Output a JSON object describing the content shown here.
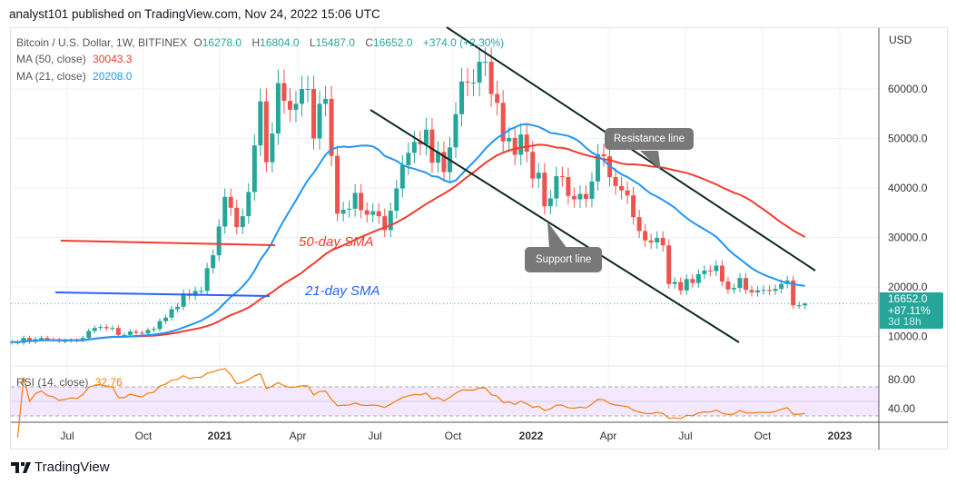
{
  "header": {
    "text": "analyst101 published on TradingView.com, Nov 24, 2022 15:06 UTC"
  },
  "legend": {
    "symbol": "Bitcoin / U.S. Dollar, 1W, BITFINEX",
    "o_label": "O",
    "o": "16278.0",
    "h_label": "H",
    "h": "16804.0",
    "l_label": "L",
    "l": "15487.0",
    "c_label": "C",
    "c": "16652.0",
    "change": "+374.0 (+2.30%)",
    "ma50_label": "MA (50, close)",
    "ma50_value": "30043.3",
    "ma21_label": "MA (21, close)",
    "ma21_value": "20208.0",
    "rsi_label": "RSI (14, close)",
    "rsi_value": "32.76"
  },
  "price_box": {
    "price": "16652.0",
    "change": "+87.11%",
    "countdown": "3d 18h"
  },
  "annotations": {
    "resistance": "Resistance line",
    "support": "Support line",
    "sma50": "50-day  SMA",
    "sma21": "21-day SMA"
  },
  "footer": {
    "brand": "TradingView"
  },
  "colors": {
    "up": "#26a69a",
    "down": "#ef5350",
    "ma50": "#f23b2f",
    "ma21": "#2196f3",
    "rsi": "#f57c00",
    "trend": "#0f2a1f",
    "rsi_band": "#f3e8fd"
  },
  "chart_data": {
    "type": "candlestick",
    "interval": "1W",
    "first_week": "2020-04-27",
    "closes": [
      8900,
      8700,
      9700,
      8900,
      9450,
      9700,
      9400,
      9300,
      9000,
      9100,
      9250,
      9200,
      9700,
      11100,
      11700,
      11900,
      11650,
      11700,
      10300,
      10300,
      11000,
      10750,
      10600,
      11300,
      11500,
      13100,
      13800,
      15500,
      16000,
      18700,
      18200,
      19200,
      19200,
      23800,
      26400,
      32200,
      38200,
      36000,
      32100,
      34300,
      39200,
      48600,
      57500,
      45200,
      51000,
      61200,
      57600,
      55800,
      57000,
      60000,
      60000,
      50000,
      57000,
      58000,
      46500,
      34800,
      35600,
      35800,
      39000,
      35500,
      34600,
      35300,
      34300,
      31500,
      35400,
      39900,
      44600,
      47100,
      49300,
      48800,
      51800,
      45100,
      47300,
      43200,
      48200,
      54900,
      61500,
      61300,
      61300,
      65500,
      65500,
      59000,
      57200,
      49400,
      50100,
      46700,
      50800,
      47300,
      41900,
      43100,
      36300,
      37900,
      42400,
      42200,
      38400,
      37700,
      38800,
      37800,
      41300,
      46800,
      46400,
      42200,
      40400,
      39500,
      38500,
      34100,
      31300,
      29400,
      29000,
      29900,
      28400,
      20600,
      21000,
      19300,
      21600,
      20800,
      22600,
      23300,
      23200,
      24300,
      21100,
      19500,
      19800,
      21800,
      19400,
      18900,
      19300,
      19400,
      19200,
      19600,
      20600,
      21300,
      16300,
      16300,
      16652
    ],
    "last_candle": {
      "open": 16278,
      "high": 16804,
      "low": 15487,
      "close": 16652
    },
    "ma_periods": [
      50,
      21
    ],
    "rsi_period": 14,
    "price_axis": {
      "label": "USD",
      "ticks": [
        "60000.0",
        "50000.0",
        "40000.0",
        "30000.0",
        "20000.0",
        "10000.0"
      ],
      "range": [
        8000,
        68000
      ]
    },
    "rsi_axis": {
      "ticks": [
        "80.00",
        "40.00"
      ],
      "band": [
        30,
        70
      ]
    },
    "time_ticks": [
      "Jul",
      "Oct",
      "2021",
      "Apr",
      "Jul",
      "Oct",
      "2022",
      "Apr",
      "Jul",
      "Oct",
      "2023"
    ],
    "grid": true
  }
}
